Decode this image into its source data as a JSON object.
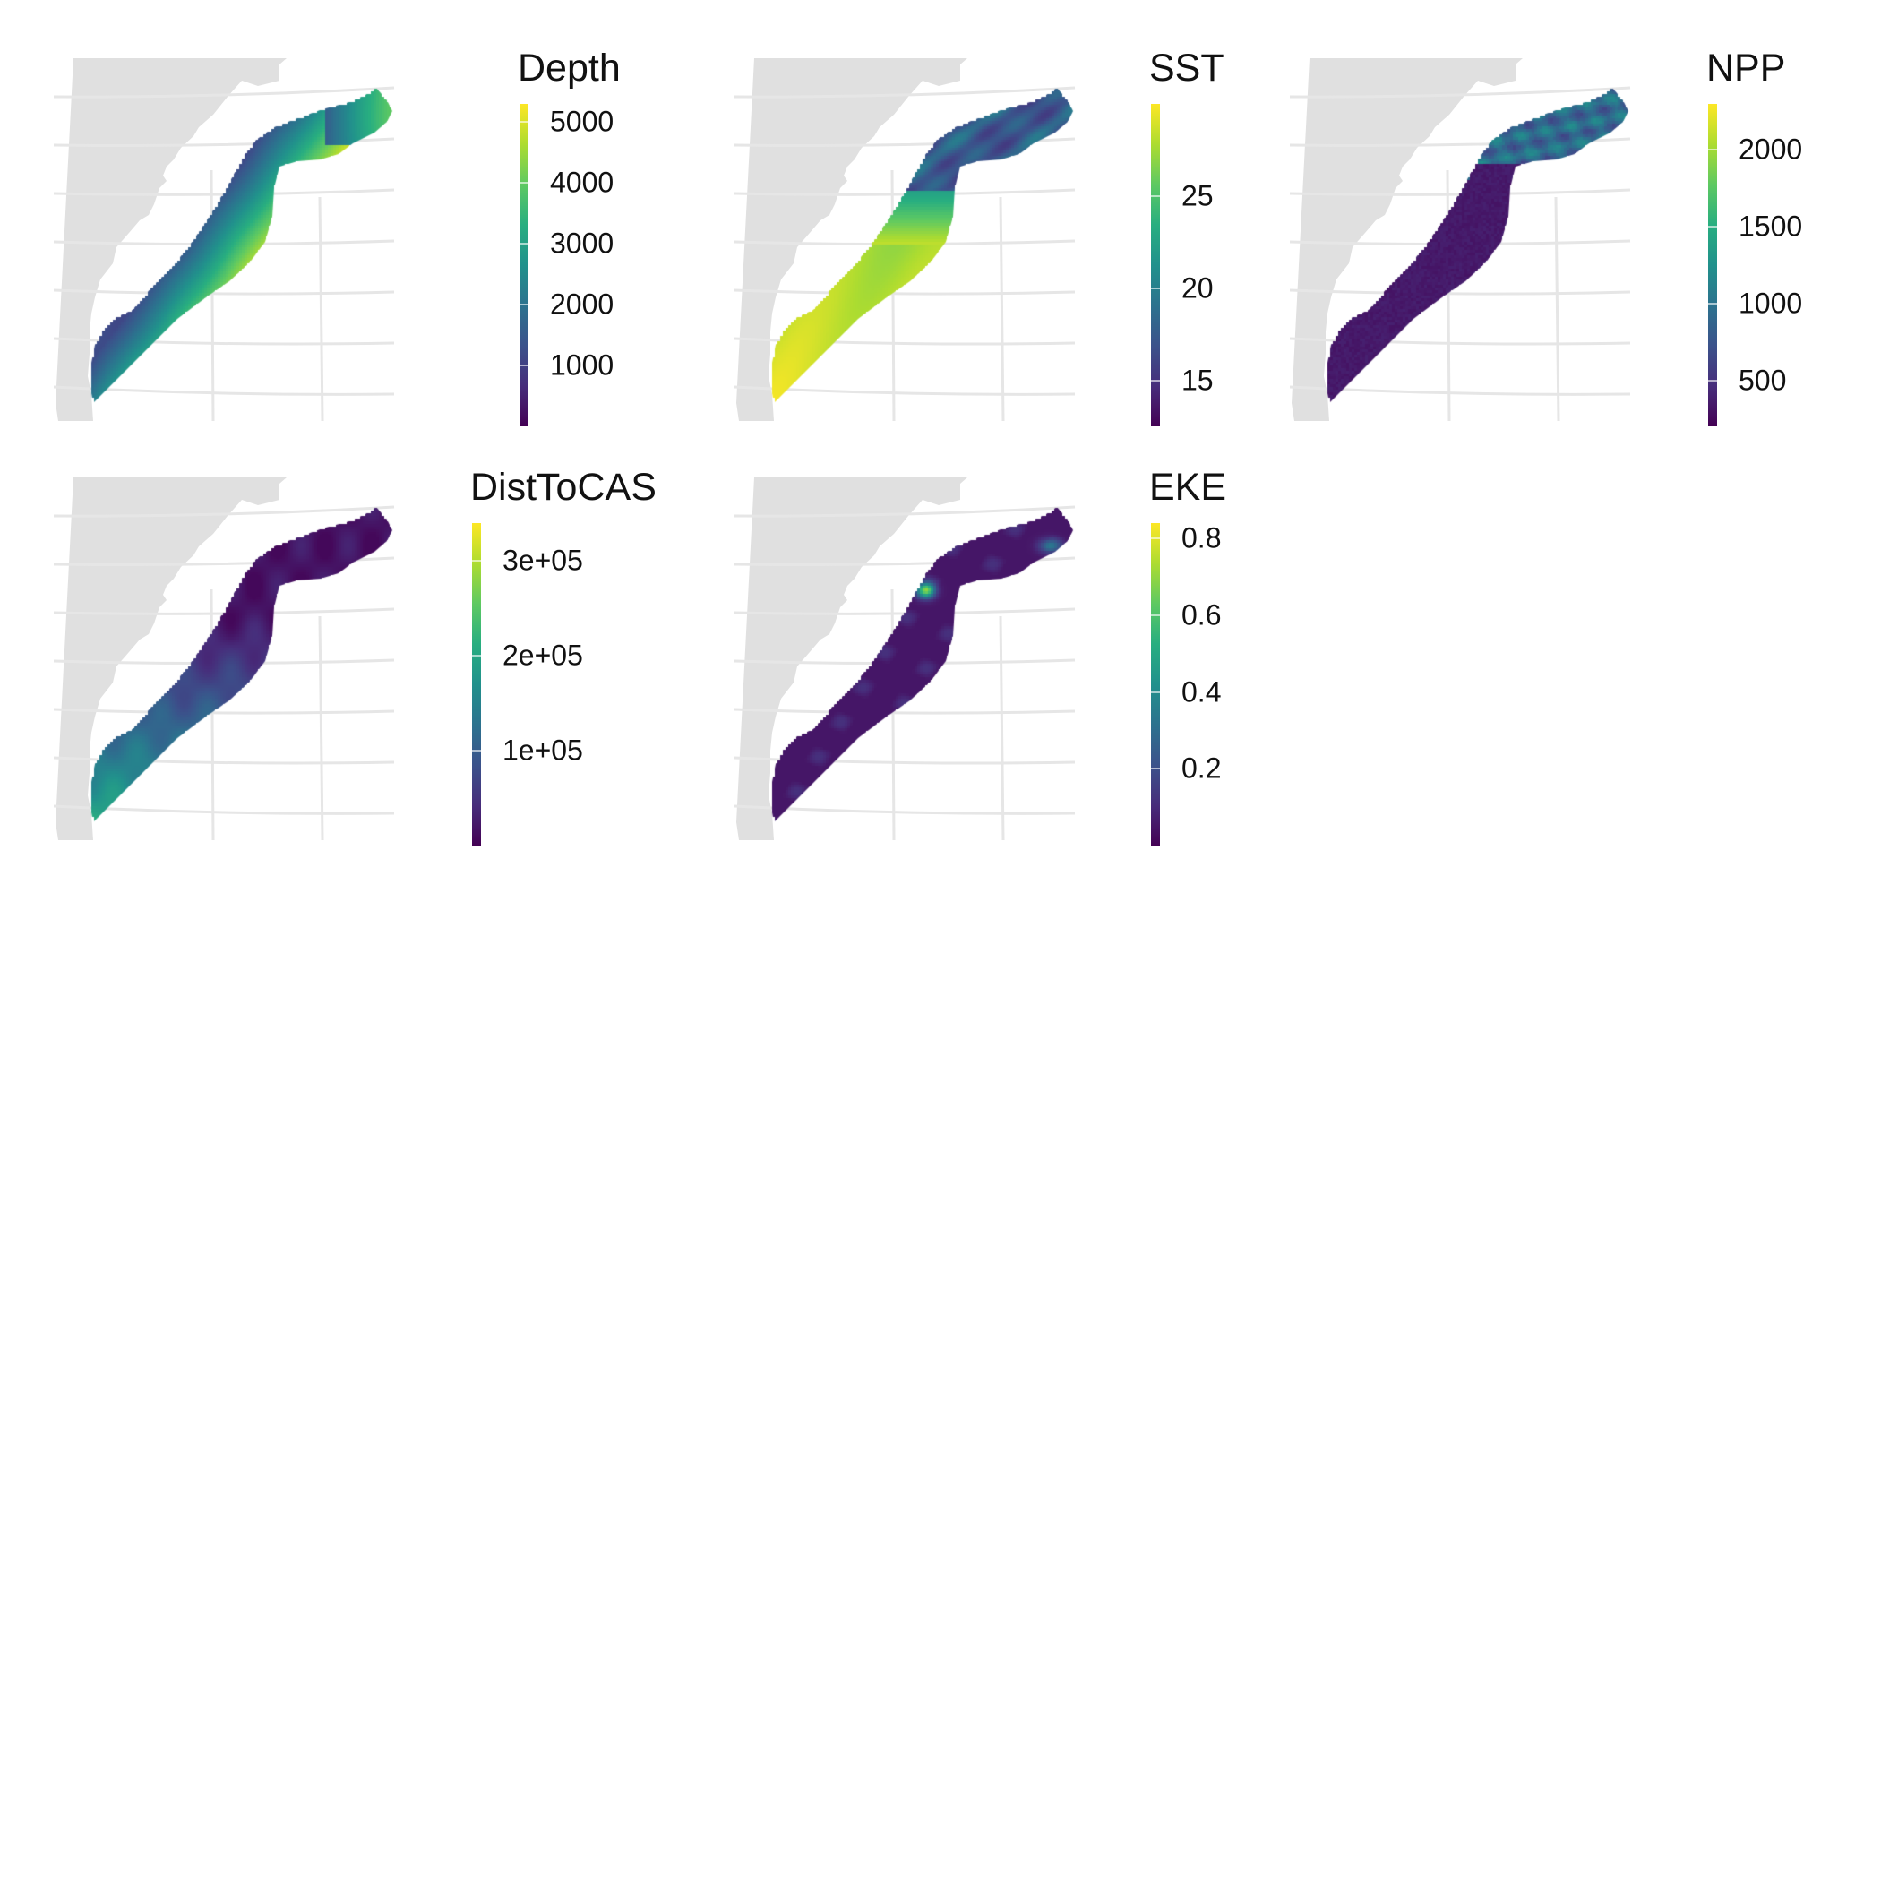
{
  "figure": {
    "panels": [
      {
        "id": "depth",
        "legend_title": "Depth",
        "colorbar": {
          "min": 0,
          "max": 5300,
          "palette": "viridis"
        },
        "ticks": [
          {
            "value": 5000,
            "label": "5000"
          },
          {
            "value": 4000,
            "label": "4000"
          },
          {
            "value": 3000,
            "label": "3000"
          },
          {
            "value": 2000,
            "label": "2000"
          },
          {
            "value": 1000,
            "label": "1000"
          }
        ],
        "field": "depth"
      },
      {
        "id": "sst",
        "legend_title": "SST",
        "colorbar": {
          "min": 12.5,
          "max": 30,
          "palette": "viridis"
        },
        "ticks": [
          {
            "value": 25,
            "label": "25"
          },
          {
            "value": 20,
            "label": "20"
          },
          {
            "value": 15,
            "label": "15"
          }
        ],
        "field": "sst"
      },
      {
        "id": "npp",
        "legend_title": "NPP",
        "colorbar": {
          "min": 200,
          "max": 2300,
          "palette": "viridis"
        },
        "ticks": [
          {
            "value": 2000,
            "label": "2000"
          },
          {
            "value": 1500,
            "label": "1500"
          },
          {
            "value": 1000,
            "label": "1000"
          },
          {
            "value": 500,
            "label": "500"
          }
        ],
        "field": "npp"
      },
      {
        "id": "disttocas",
        "legend_title": "DistToCAS",
        "colorbar": {
          "min": 0,
          "max": 340000,
          "palette": "viridis"
        },
        "ticks": [
          {
            "value": 300000,
            "label": "3e+05"
          },
          {
            "value": 200000,
            "label": "2e+05"
          },
          {
            "value": 100000,
            "label": "1e+05"
          }
        ],
        "field": "dist"
      },
      {
        "id": "eke",
        "legend_title": "EKE",
        "colorbar": {
          "min": 0,
          "max": 0.84,
          "palette": "viridis"
        },
        "ticks": [
          {
            "value": 0.8,
            "label": "0.8"
          },
          {
            "value": 0.6,
            "label": "0.6"
          },
          {
            "value": 0.4,
            "label": "0.4"
          },
          {
            "value": 0.2,
            "label": "0.2"
          }
        ],
        "field": "eke"
      }
    ],
    "colors": {
      "land": "#e0e0e0",
      "graticule": "#e6e6e6",
      "viridis": [
        "#440154",
        "#472d7b",
        "#3b528b",
        "#2c728e",
        "#21918c",
        "#28ae80",
        "#5ec962",
        "#addc30",
        "#fde725"
      ]
    }
  }
}
